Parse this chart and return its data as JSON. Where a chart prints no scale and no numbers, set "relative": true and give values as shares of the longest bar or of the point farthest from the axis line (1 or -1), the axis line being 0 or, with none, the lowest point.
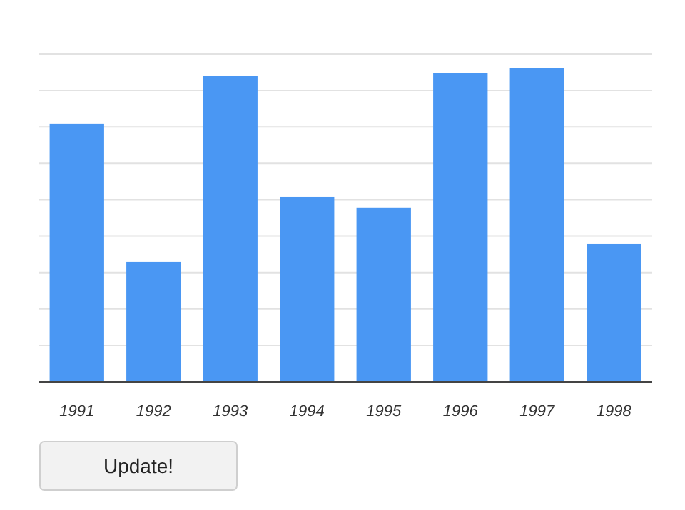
{
  "chart_data": {
    "type": "bar",
    "relative": true,
    "grid": "y",
    "categories": [
      "1991",
      "1992",
      "1993",
      "1994",
      "1995",
      "1996",
      "1997",
      "1998"
    ],
    "series": [
      {
        "color": "#4a97f3",
        "values": [
          0.823,
          0.382,
          0.977,
          0.591,
          0.555,
          0.986,
          1,
          0.441
        ]
      }
    ],
    "annotations": [
      "Update!"
    ]
  }
}
